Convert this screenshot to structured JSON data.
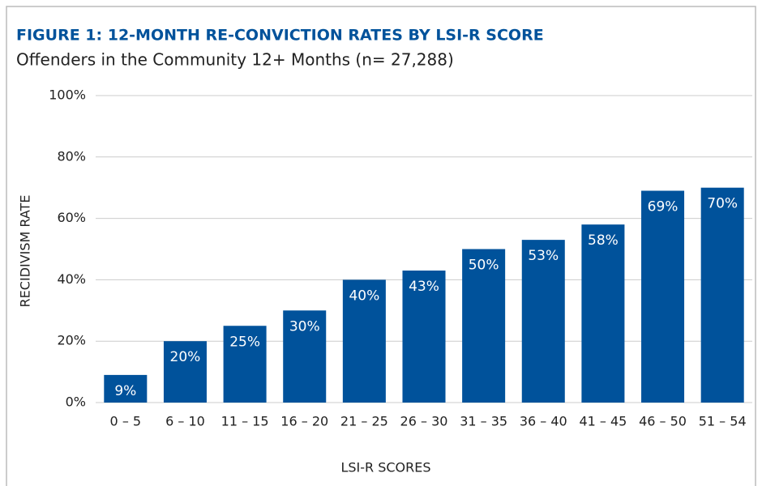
{
  "chart_data": {
    "type": "bar",
    "title": "FIGURE 1: 12-MONTH RE-CONVICTION RATES BY LSI-R SCORE",
    "subtitle": "Offenders in the Community 12+ Months (n= 27,288)",
    "x_label": "LSI-R SCORES",
    "y_label": "RECIDIVISM RATE",
    "categories": [
      "0 – 5",
      "6 – 10",
      "11 – 15",
      "16 – 20",
      "21 – 25",
      "26 – 30",
      "31 – 35",
      "36 – 40",
      "41 – 45",
      "46 – 50",
      "51 – 54"
    ],
    "values": [
      9,
      20,
      25,
      30,
      40,
      43,
      50,
      53,
      58,
      69,
      70
    ],
    "value_labels": [
      "9%",
      "20%",
      "25%",
      "30%",
      "40%",
      "43%",
      "50%",
      "53%",
      "58%",
      "69%",
      "70%"
    ],
    "color": "#00529b",
    "ylim": [
      0,
      100
    ],
    "yticks": [
      {
        "value": 0,
        "label": "0%"
      },
      {
        "value": 20,
        "label": "20%"
      },
      {
        "value": 40,
        "label": "40%"
      },
      {
        "value": 60,
        "label": "60%"
      },
      {
        "value": 80,
        "label": "80%"
      },
      {
        "value": 100,
        "label": "100%"
      }
    ],
    "grid": true
  }
}
